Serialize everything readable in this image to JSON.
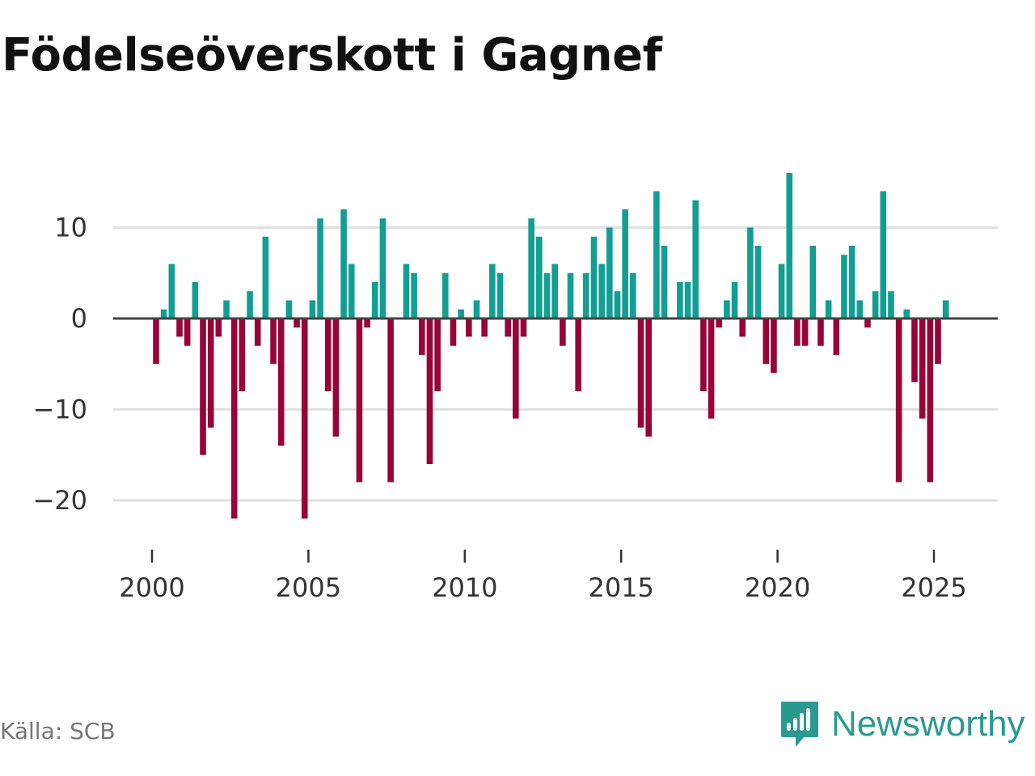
{
  "title": "Födelseöverskott i Gagnef",
  "source": "Källa: SCB",
  "brand": {
    "name": "Newsworthy",
    "icon": "newsworthy-logo-icon"
  },
  "colors": {
    "positive": "#139e94",
    "negative": "#970538",
    "grid": "#e0e0e0",
    "zero_line": "#444444",
    "brand": "#2a9a90"
  },
  "chart_data": {
    "type": "bar",
    "title": "Födelseöverskott i Gagnef",
    "xlabel": "",
    "ylabel": "",
    "ylim": [
      -25,
      16
    ],
    "xlim": [
      1999.7,
      2026.3
    ],
    "y_ticks": [
      10,
      0,
      -10,
      -20
    ],
    "y_tick_labels": [
      "10",
      "0",
      "−10",
      "−20"
    ],
    "x_ticks": [
      2000,
      2005,
      2010,
      2015,
      2020,
      2025
    ],
    "x_tick_labels": [
      "2000",
      "2005",
      "2010",
      "2015",
      "2020",
      "2025"
    ],
    "grid": true,
    "frequency": "quarterly",
    "start": 2000.0,
    "step": 0.25,
    "values": [
      -5,
      1,
      6,
      -2,
      -3,
      4,
      -15,
      -12,
      -2,
      2,
      -22,
      -8,
      3,
      -3,
      9,
      -5,
      -14,
      2,
      -1,
      -22,
      2,
      11,
      -8,
      -13,
      12,
      6,
      -18,
      -1,
      4,
      11,
      -18,
      0,
      6,
      5,
      -4,
      -16,
      -8,
      5,
      -3,
      1,
      -2,
      2,
      -2,
      6,
      5,
      -2,
      -11,
      -2,
      11,
      9,
      5,
      6,
      -3,
      5,
      -8,
      5,
      9,
      6,
      10,
      3,
      12,
      5,
      -12,
      -13,
      14,
      8,
      0,
      4,
      4,
      13,
      -8,
      -11,
      -1,
      2,
      4,
      -2,
      10,
      8,
      -5,
      -6,
      6,
      16,
      -3,
      -3,
      8,
      -3,
      2,
      -4,
      7,
      8,
      2,
      -1,
      3,
      14,
      3,
      -18,
      1,
      -7,
      -11,
      -18,
      -5,
      2
    ]
  }
}
